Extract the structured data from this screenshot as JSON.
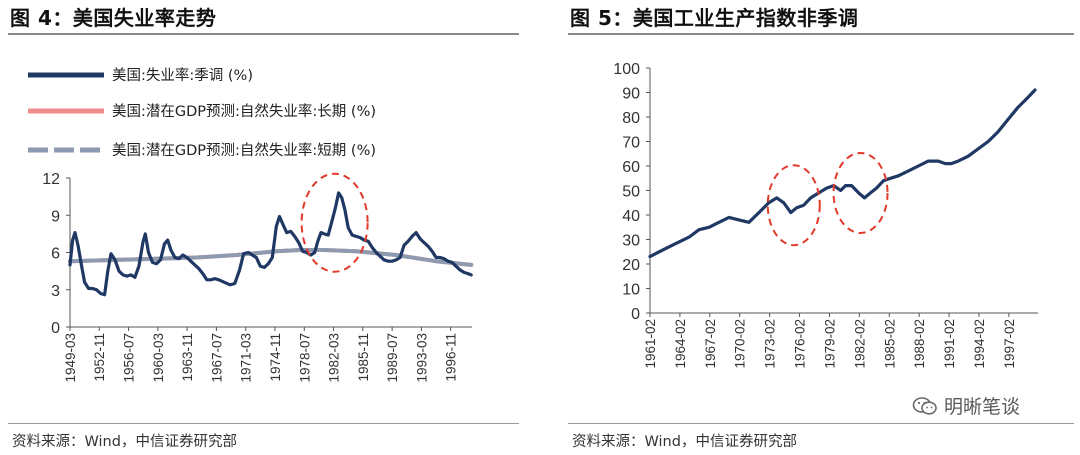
{
  "left_panel": {
    "title": "图 4：美国失业率走势",
    "source": "资料来源：Wind，中信证券研究部"
  },
  "right_panel": {
    "title": "图 5：美国工业生产指数非季调",
    "source": "资料来源：Wind，中信证券研究部"
  },
  "watermark": {
    "text": "明晰笔谈",
    "icon": "wechat-icon"
  },
  "colors": {
    "navy": "#1f3864",
    "pink": "#f08c8c",
    "gray": "#8e9aaf",
    "ellipse": "#e23a2a"
  },
  "chart_data": [
    {
      "type": "line",
      "title": "",
      "ylim": [
        0,
        12
      ],
      "yticks": [
        0,
        3,
        6,
        9,
        12
      ],
      "xlim": [
        1949.17,
        1999.5
      ],
      "xtick_labels": [
        "1949-03",
        "1952-11",
        "1956-07",
        "1960-03",
        "1963-11",
        "1967-07",
        "1971-03",
        "1974-11",
        "1978-07",
        "1982-03",
        "1985-11",
        "1989-07",
        "1993-03",
        "1996-11"
      ],
      "xtick_values": [
        1949.17,
        1952.83,
        1956.5,
        1960.17,
        1963.83,
        1967.5,
        1971.17,
        1974.83,
        1978.5,
        1982.17,
        1985.83,
        1989.5,
        1993.17,
        1996.83
      ],
      "legend_position": "top-left",
      "series": [
        {
          "name": "美国:失业率:季调 (%)",
          "color": "#1f3864",
          "style": "solid",
          "x": [
            1949.17,
            1949.5,
            1949.8,
            1950.2,
            1950.6,
            1951.0,
            1951.5,
            1952.0,
            1952.5,
            1953.0,
            1953.5,
            1953.9,
            1954.3,
            1954.8,
            1955.3,
            1955.8,
            1956.3,
            1956.8,
            1957.3,
            1957.8,
            1958.3,
            1958.6,
            1959.0,
            1959.5,
            1960.0,
            1960.5,
            1961.0,
            1961.4,
            1961.8,
            1962.3,
            1962.8,
            1963.3,
            1963.8,
            1964.3,
            1964.8,
            1965.3,
            1965.8,
            1966.3,
            1966.8,
            1967.3,
            1967.8,
            1968.5,
            1969.2,
            1969.8,
            1970.4,
            1970.9,
            1971.5,
            1972.0,
            1972.5,
            1973.0,
            1973.5,
            1974.0,
            1974.5,
            1975.0,
            1975.4,
            1975.8,
            1976.3,
            1976.8,
            1977.3,
            1977.8,
            1978.3,
            1978.8,
            1979.3,
            1979.8,
            1980.2,
            1980.6,
            1981.0,
            1981.5,
            1982.0,
            1982.4,
            1982.8,
            1983.2,
            1983.6,
            1984.0,
            1984.5,
            1985.0,
            1985.5,
            1986.0,
            1986.5,
            1987.0,
            1987.5,
            1988.0,
            1988.5,
            1989.0,
            1989.5,
            1990.0,
            1990.5,
            1991.0,
            1991.5,
            1992.0,
            1992.5,
            1993.0,
            1993.5,
            1994.0,
            1994.5,
            1995.0,
            1995.5,
            1996.0,
            1996.5,
            1997.0,
            1997.5,
            1998.0,
            1998.5,
            1999.0,
            1999.4
          ],
          "y": [
            5.0,
            7.0,
            7.6,
            6.5,
            5.0,
            3.6,
            3.1,
            3.1,
            3.0,
            2.7,
            2.6,
            4.5,
            5.9,
            5.4,
            4.5,
            4.2,
            4.1,
            4.2,
            4.0,
            4.9,
            6.8,
            7.5,
            6.0,
            5.2,
            5.1,
            5.4,
            6.7,
            7.0,
            6.2,
            5.6,
            5.5,
            5.8,
            5.6,
            5.3,
            5.0,
            4.7,
            4.3,
            3.8,
            3.8,
            3.9,
            3.8,
            3.6,
            3.4,
            3.5,
            4.6,
            5.9,
            6.0,
            5.8,
            5.6,
            4.9,
            4.8,
            5.1,
            5.6,
            8.1,
            8.9,
            8.3,
            7.6,
            7.7,
            7.3,
            6.8,
            6.1,
            6.0,
            5.8,
            6.0,
            6.9,
            7.6,
            7.5,
            7.4,
            8.6,
            9.6,
            10.8,
            10.4,
            9.4,
            8.0,
            7.4,
            7.3,
            7.2,
            7.0,
            6.9,
            6.4,
            6.0,
            5.7,
            5.4,
            5.3,
            5.3,
            5.4,
            5.6,
            6.6,
            6.9,
            7.3,
            7.6,
            7.1,
            6.8,
            6.5,
            6.1,
            5.6,
            5.6,
            5.5,
            5.3,
            5.2,
            4.9,
            4.6,
            4.4,
            4.3,
            4.2
          ]
        },
        {
          "name": "美国:潜在GDP预测:自然失业率:长期 (%)",
          "color": "#f08c8c",
          "style": "solid",
          "x": [
            1949.17,
            1955,
            1960,
            1965,
            1970,
            1975,
            1978,
            1981,
            1985,
            1990,
            1995,
            1999.4
          ],
          "y": [
            5.3,
            5.4,
            5.5,
            5.6,
            5.8,
            6.1,
            6.2,
            6.2,
            6.1,
            5.8,
            5.3,
            5.0
          ]
        },
        {
          "name": "美国:潜在GDP预测:自然失业率:短期 (%)",
          "color": "#8e9aaf",
          "style": "dashed",
          "x": [
            1949.17,
            1955,
            1960,
            1965,
            1970,
            1975,
            1978,
            1981,
            1985,
            1990,
            1995,
            1999.4
          ],
          "y": [
            5.3,
            5.4,
            5.5,
            5.6,
            5.8,
            6.1,
            6.2,
            6.2,
            6.1,
            5.8,
            5.3,
            5.0
          ]
        }
      ],
      "annotations": [
        {
          "type": "ellipse",
          "center_x": 1982.3,
          "center_y": 8.4
        }
      ]
    },
    {
      "type": "line",
      "title": "",
      "ylim": [
        0,
        100
      ],
      "yticks": [
        0,
        10,
        20,
        30,
        40,
        50,
        60,
        70,
        80,
        90,
        100
      ],
      "xlim": [
        1961.08,
        2000.0
      ],
      "xtick_labels": [
        "1961-02",
        "1964-02",
        "1967-02",
        "1970-02",
        "1973-02",
        "1976-02",
        "1979-02",
        "1982-02",
        "1985-02",
        "1988-02",
        "1991-02",
        "1994-02",
        "1997-02"
      ],
      "xtick_values": [
        1961.08,
        1964.08,
        1967.08,
        1970.08,
        1973.08,
        1976.08,
        1979.08,
        1982.08,
        1985.08,
        1988.08,
        1991.08,
        1994.08,
        1997.08
      ],
      "series": [
        {
          "name": "",
          "color": "#1f3864",
          "style": "solid",
          "x": [
            1961.08,
            1962,
            1963,
            1964,
            1965,
            1966,
            1967,
            1968,
            1969,
            1970,
            1971,
            1972,
            1973,
            1973.8,
            1974.5,
            1975.2,
            1975.8,
            1976.5,
            1977.2,
            1978,
            1978.8,
            1979.5,
            1980.2,
            1980.7,
            1981.3,
            1982.0,
            1982.6,
            1983.2,
            1983.8,
            1984.5,
            1985.2,
            1986,
            1987,
            1988,
            1989,
            1990,
            1990.7,
            1991.3,
            1992,
            1993,
            1994,
            1995,
            1996,
            1997,
            1998,
            1999,
            1999.7
          ],
          "y": [
            23,
            25,
            27,
            29,
            31,
            34,
            35,
            37,
            39,
            38,
            37,
            41,
            45,
            47,
            45,
            41,
            43,
            44,
            47,
            49,
            51,
            52,
            50,
            52,
            52,
            49,
            47,
            49,
            51,
            54,
            55,
            56,
            58,
            60,
            62,
            62,
            61,
            61,
            62,
            64,
            67,
            70,
            74,
            79,
            84,
            88,
            91
          ]
        }
      ],
      "annotations": [
        {
          "type": "ellipse",
          "center_x": 1975.5,
          "center_y": 44
        },
        {
          "type": "ellipse",
          "center_x": 1982.2,
          "center_y": 49
        }
      ]
    }
  ]
}
